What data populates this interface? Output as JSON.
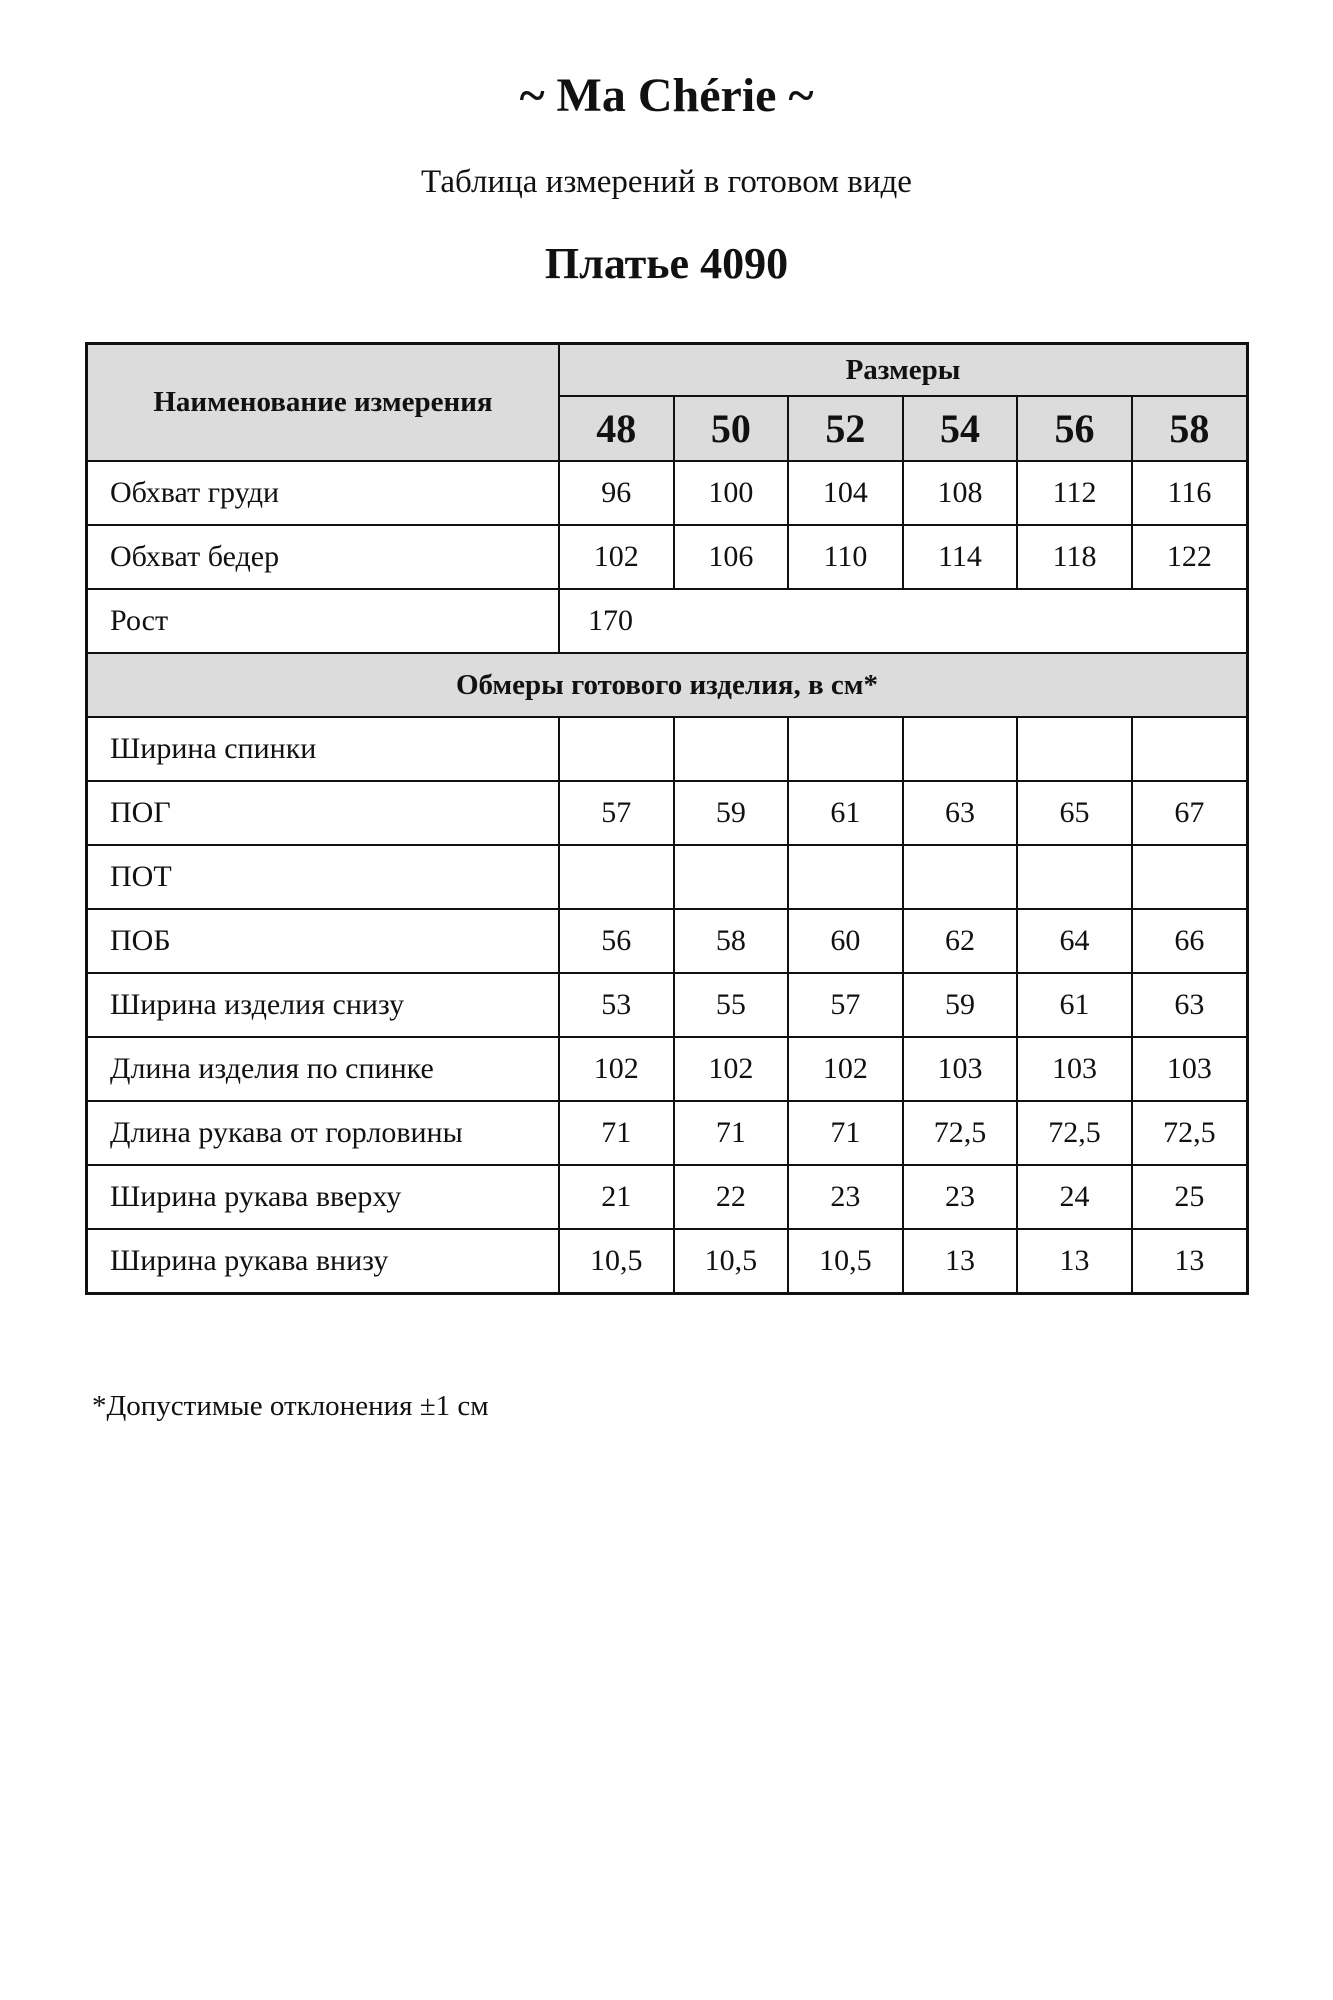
{
  "brand": "~ Ma Chérie ~",
  "subtitle": "Таблица измерений в готовом виде",
  "title": "Платье 4090",
  "table": {
    "name_header": "Наименование измерения",
    "sizes_header": "Размеры",
    "sizes": [
      "48",
      "50",
      "52",
      "54",
      "56",
      "58"
    ],
    "body_rows": [
      {
        "label": "Обхват груди",
        "values": [
          "96",
          "100",
          "104",
          "108",
          "112",
          "116"
        ]
      },
      {
        "label": "Обхват бедер",
        "values": [
          "102",
          "106",
          "110",
          "114",
          "118",
          "122"
        ]
      }
    ],
    "height_row": {
      "label": "Рост",
      "value": "170"
    },
    "section_header": "Обмеры готового изделия, в см*",
    "garment_rows": [
      {
        "label": "Ширина спинки",
        "values": [
          "",
          "",
          "",
          "",
          "",
          ""
        ]
      },
      {
        "label": "ПОГ",
        "values": [
          "57",
          "59",
          "61",
          "63",
          "65",
          "67"
        ]
      },
      {
        "label": "ПОТ",
        "values": [
          "",
          "",
          "",
          "",
          "",
          ""
        ]
      },
      {
        "label": "ПОБ",
        "values": [
          "56",
          "58",
          "60",
          "62",
          "64",
          "66"
        ]
      },
      {
        "label": "Ширина изделия снизу",
        "values": [
          "53",
          "55",
          "57",
          "59",
          "61",
          "63"
        ]
      },
      {
        "label": "Длина изделия по спинке",
        "values": [
          "102",
          "102",
          "102",
          "103",
          "103",
          "103"
        ]
      },
      {
        "label": "Длина рукава от горловины",
        "values": [
          "71",
          "71",
          "71",
          "72,5",
          "72,5",
          "72,5"
        ]
      },
      {
        "label": "Ширина рукава вверху",
        "values": [
          "21",
          "22",
          "23",
          "23",
          "24",
          "25"
        ]
      },
      {
        "label": "Ширина рукава внизу",
        "values": [
          "10,5",
          "10,5",
          "10,5",
          "13",
          "13",
          "13"
        ]
      }
    ]
  },
  "footnote": "*Допустимые отклонения ±1 см"
}
